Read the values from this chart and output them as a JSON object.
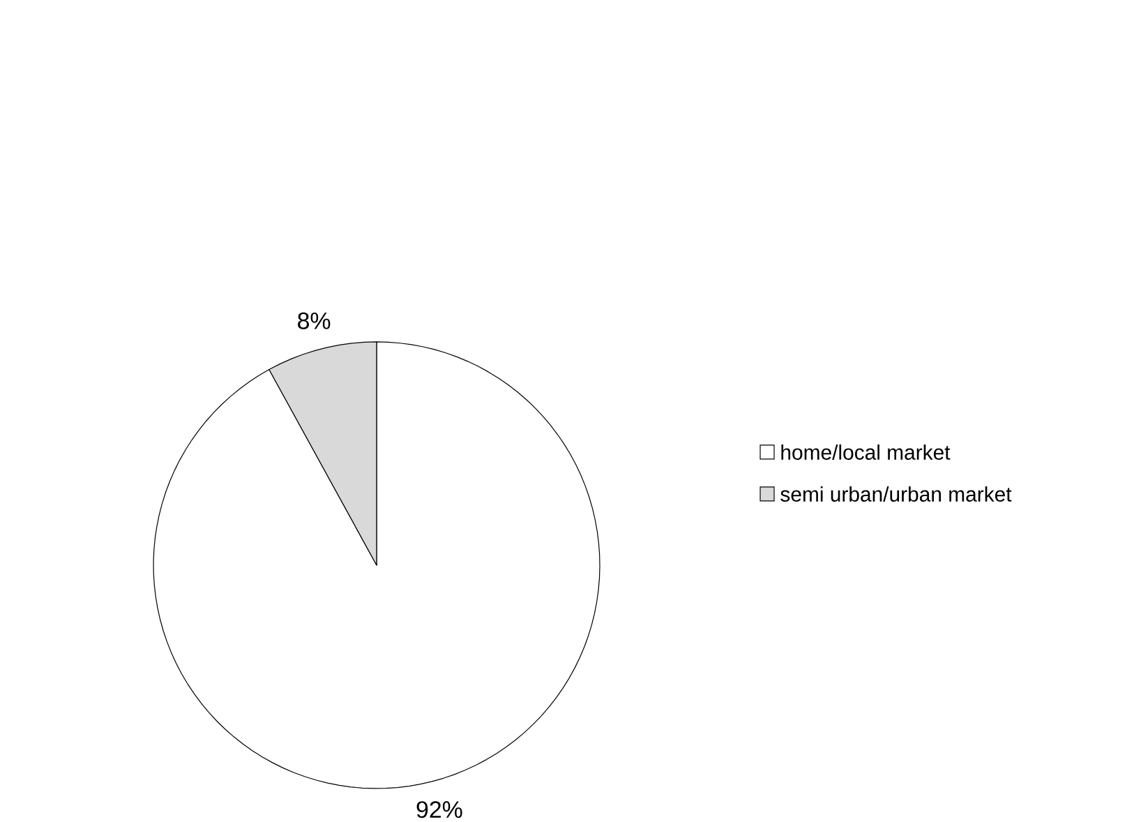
{
  "chart_data": {
    "type": "pie",
    "categories": [
      "home/local market",
      "semi urban/urban market"
    ],
    "values": [
      92,
      8
    ],
    "colors": [
      "#ffffff",
      "#d9d9d9"
    ],
    "value_labels": [
      "92%",
      "8%"
    ],
    "legend": "right"
  }
}
